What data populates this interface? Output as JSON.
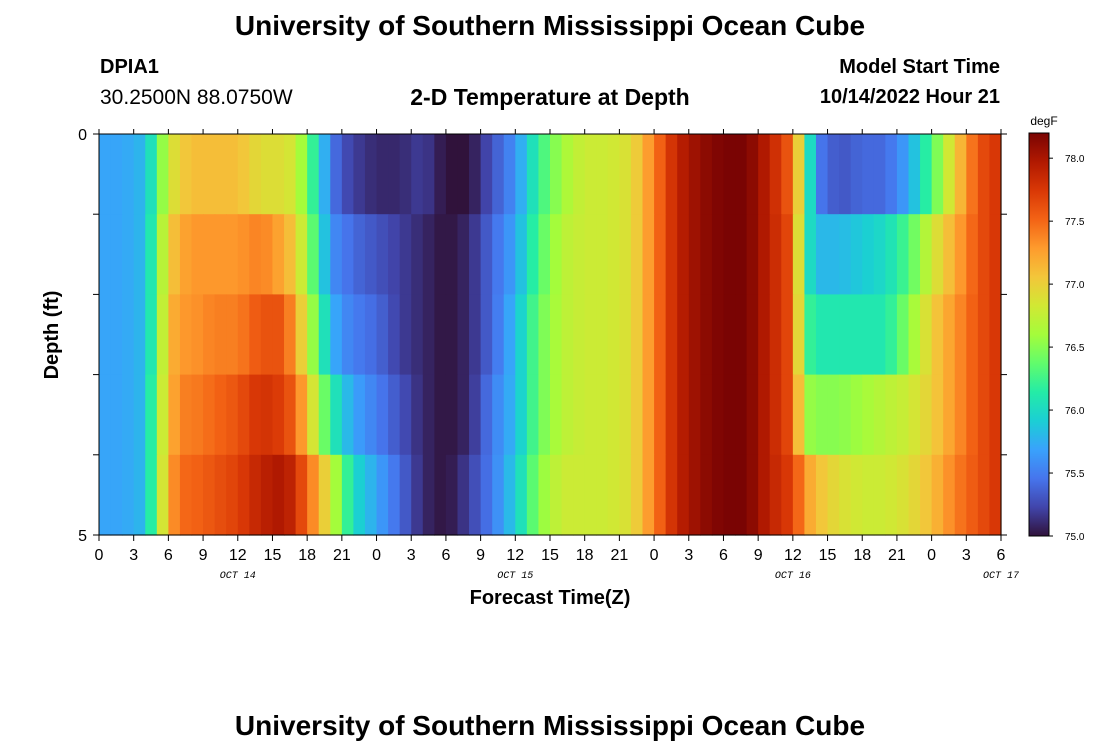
{
  "header": {
    "title": "University of Southern Mississippi Ocean Cube",
    "station": "DPIA1",
    "coords": "30.2500N  88.0750W",
    "subtitle": "2-D Temperature at Depth",
    "model_start_label": "Model Start Time",
    "model_start_value": "10/14/2022 Hour 21"
  },
  "footer": {
    "title": "University of Southern Mississippi Ocean Cube"
  },
  "chart_data": {
    "type": "heatmap",
    "title": "2-D Temperature at Depth",
    "xlabel": "Forecast Time(Z)",
    "ylabel": "Depth (ft)",
    "x_tick_labels": [
      "0",
      "3",
      "6",
      "9",
      "12",
      "15",
      "18",
      "21",
      "0",
      "3",
      "6",
      "9",
      "12",
      "15",
      "18",
      "21",
      "0",
      "3",
      "6",
      "9",
      "12",
      "15",
      "18",
      "21",
      "0",
      "3",
      "6"
    ],
    "date_labels": [
      {
        "label": "OCT 14",
        "x_hour": 12
      },
      {
        "label": "OCT 15",
        "x_hour": 36
      },
      {
        "label": "OCT 16",
        "x_hour": 60
      },
      {
        "label": "OCT 17",
        "x_hour": 78
      }
    ],
    "x_range_hours": [
      0,
      78
    ],
    "depth_range_ft": [
      0,
      5
    ],
    "y_tick_labels": [
      "0",
      "5"
    ],
    "colorbar": {
      "unit": "degF",
      "range": [
        75.0,
        78.2
      ],
      "tick_labels": [
        "75.0",
        "75.5",
        "76.0",
        "76.5",
        "77.0",
        "77.5",
        "78.0"
      ],
      "tick_values": [
        75.0,
        75.5,
        76.0,
        76.5,
        77.0,
        77.5,
        78.0
      ],
      "colors": [
        "#30123b",
        "#4145ab",
        "#4675ed",
        "#39a2fc",
        "#1bcfd4",
        "#24eca6",
        "#61fc6c",
        "#a4fc3b",
        "#d1e834",
        "#f3c63a",
        "#fe9b2d",
        "#f36315",
        "#d93806",
        "#b11901",
        "#7a0403"
      ]
    },
    "temperature_profiles": {
      "depth_rows_ft": [
        0.5,
        1.5,
        2.5,
        3.5,
        4.5
      ],
      "time_hours": [
        0,
        2,
        4,
        5,
        6,
        7,
        8,
        10,
        12,
        14,
        16,
        17,
        18,
        19,
        20,
        21,
        22,
        24,
        26,
        28,
        30,
        32,
        34,
        36,
        38,
        40,
        42,
        44,
        46,
        48,
        50,
        52,
        54,
        56,
        58,
        60,
        61,
        62,
        64,
        66,
        68,
        70,
        72,
        74,
        76,
        78
      ],
      "values_by_row": [
        [
          75.7,
          75.7,
          75.8,
          76.3,
          76.8,
          77.0,
          77.1,
          77.1,
          77.1,
          76.9,
          76.9,
          76.8,
          76.4,
          76.0,
          75.5,
          75.3,
          75.2,
          75.1,
          75.1,
          75.2,
          75.0,
          75.0,
          75.3,
          75.6,
          76.2,
          76.6,
          76.8,
          76.8,
          76.9,
          77.4,
          77.9,
          78.1,
          78.2,
          78.2,
          77.9,
          77.5,
          76.5,
          75.5,
          75.3,
          75.4,
          75.4,
          75.7,
          76.3,
          77.0,
          77.6,
          77.8
        ],
        [
          75.7,
          75.7,
          75.8,
          76.4,
          77.0,
          77.2,
          77.3,
          77.3,
          77.3,
          77.4,
          77.2,
          77.0,
          76.6,
          76.1,
          75.6,
          75.5,
          75.4,
          75.3,
          75.2,
          75.1,
          75.0,
          75.1,
          75.4,
          75.7,
          76.3,
          76.7,
          76.8,
          76.8,
          76.9,
          77.4,
          77.9,
          78.1,
          78.2,
          78.2,
          77.9,
          77.6,
          76.2,
          75.8,
          75.8,
          75.9,
          76.0,
          76.3,
          76.8,
          77.2,
          77.6,
          77.8
        ],
        [
          75.7,
          75.7,
          75.8,
          76.4,
          77.1,
          77.3,
          77.3,
          77.4,
          77.4,
          77.6,
          77.6,
          77.2,
          76.8,
          76.3,
          75.8,
          75.6,
          75.5,
          75.4,
          75.2,
          75.1,
          75.0,
          75.1,
          75.4,
          75.8,
          76.4,
          76.7,
          76.8,
          76.8,
          76.9,
          77.4,
          77.9,
          78.1,
          78.2,
          78.2,
          77.9,
          77.6,
          76.3,
          76.1,
          76.1,
          76.1,
          76.1,
          76.5,
          77.0,
          77.3,
          77.6,
          77.8
        ],
        [
          75.7,
          75.7,
          75.8,
          76.5,
          77.1,
          77.4,
          77.4,
          77.5,
          77.6,
          77.8,
          77.7,
          77.5,
          77.1,
          76.6,
          76.2,
          75.9,
          75.7,
          75.5,
          75.3,
          75.1,
          75.0,
          75.1,
          75.5,
          75.8,
          76.4,
          76.7,
          76.8,
          76.8,
          76.9,
          77.4,
          77.9,
          78.1,
          78.2,
          78.2,
          77.9,
          77.6,
          76.6,
          76.5,
          76.5,
          76.6,
          76.7,
          76.8,
          77.0,
          77.3,
          77.6,
          77.8
        ],
        [
          75.7,
          75.7,
          75.8,
          76.5,
          77.2,
          77.5,
          77.5,
          77.6,
          77.7,
          77.9,
          78.0,
          77.8,
          77.5,
          77.2,
          76.8,
          76.4,
          76.0,
          75.7,
          75.4,
          75.1,
          75.0,
          75.2,
          75.5,
          75.9,
          76.5,
          76.8,
          76.8,
          76.8,
          76.9,
          77.4,
          77.9,
          78.1,
          78.2,
          78.2,
          77.9,
          77.7,
          77.3,
          77.1,
          76.9,
          76.8,
          76.8,
          76.9,
          77.1,
          77.4,
          77.6,
          77.8
        ]
      ]
    }
  }
}
